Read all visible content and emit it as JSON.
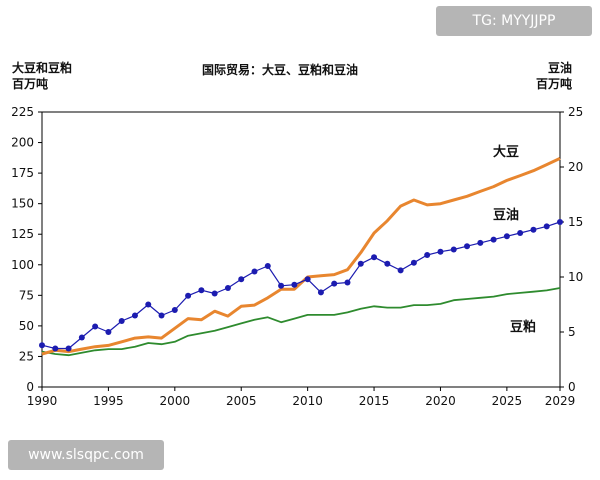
{
  "watermarks": {
    "top": "TG: MYYJJPP",
    "bottom": "www.slsqpc.com"
  },
  "chart_data": {
    "type": "line",
    "title": "国际贸易：大豆、豆粕和豆油",
    "left_axis_label": [
      "大豆和豆粕",
      "百万吨"
    ],
    "right_axis_label": [
      "豆油",
      "百万吨"
    ],
    "x_ticks": [
      1990,
      1995,
      2000,
      2005,
      2010,
      2015,
      2020,
      2025,
      2029
    ],
    "xlim": [
      1990,
      2029
    ],
    "y_left_ticks": [
      0,
      25,
      50,
      75,
      100,
      125,
      150,
      175,
      200,
      225
    ],
    "ylim_left": [
      0,
      225
    ],
    "y_right_ticks": [
      0,
      5,
      10,
      15,
      20,
      25
    ],
    "ylim_right": [
      0,
      25
    ],
    "grid": false,
    "series": [
      {
        "name": "大豆",
        "axis": "left",
        "color": "#e8862f",
        "marker": "none",
        "x": [
          1990,
          1991,
          1992,
          1993,
          1994,
          1995,
          1996,
          1997,
          1998,
          1999,
          2000,
          2001,
          2002,
          2003,
          2004,
          2005,
          2006,
          2007,
          2008,
          2009,
          2010,
          2011,
          2012,
          2013,
          2014,
          2015,
          2016,
          2017,
          2018,
          2019,
          2020,
          2021,
          2022,
          2023,
          2024,
          2025,
          2026,
          2027,
          2028,
          2029
        ],
        "values": [
          27,
          30,
          29,
          31,
          33,
          34,
          37,
          40,
          41,
          40,
          48,
          56,
          55,
          62,
          58,
          66,
          67,
          73,
          80,
          80,
          90,
          91,
          92,
          96,
          110,
          126,
          136,
          148,
          153,
          149,
          150,
          153,
          156,
          160,
          164,
          169,
          173,
          177,
          182,
          187
        ]
      },
      {
        "name": "豆油",
        "axis": "right",
        "color": "#1c1cb0",
        "marker": "circle",
        "x": [
          1990,
          1991,
          1992,
          1993,
          1994,
          1995,
          1996,
          1997,
          1998,
          1999,
          2000,
          2001,
          2002,
          2003,
          2004,
          2005,
          2006,
          2007,
          2008,
          2009,
          2010,
          2011,
          2012,
          2013,
          2014,
          2015,
          2016,
          2017,
          2018,
          2019,
          2020,
          2021,
          2022,
          2023,
          2024,
          2025,
          2026,
          2027,
          2028,
          2029
        ],
        "values": [
          3.8,
          3.5,
          3.5,
          4.5,
          5.5,
          5.0,
          6.0,
          6.5,
          7.5,
          6.5,
          7.0,
          8.3,
          8.8,
          8.5,
          9.0,
          9.8,
          10.5,
          11.0,
          9.2,
          9.3,
          9.8,
          8.6,
          9.4,
          9.5,
          11.2,
          11.8,
          11.2,
          10.6,
          11.3,
          12.0,
          12.3,
          12.5,
          12.8,
          13.1,
          13.4,
          13.7,
          14.0,
          14.3,
          14.6,
          15.0
        ]
      },
      {
        "name": "豆粕",
        "axis": "left",
        "color": "#2e8b2e",
        "marker": "none",
        "x": [
          1990,
          1991,
          1992,
          1993,
          1994,
          1995,
          1996,
          1997,
          1998,
          1999,
          2000,
          2001,
          2002,
          2003,
          2004,
          2005,
          2006,
          2007,
          2008,
          2009,
          2010,
          2011,
          2012,
          2013,
          2014,
          2015,
          2016,
          2017,
          2018,
          2019,
          2020,
          2021,
          2022,
          2023,
          2024,
          2025,
          2026,
          2027,
          2028,
          2029
        ],
        "values": [
          29,
          27,
          26,
          28,
          30,
          31,
          31,
          33,
          36,
          35,
          37,
          42,
          44,
          46,
          49,
          52,
          55,
          57,
          53,
          56,
          59,
          59,
          59,
          61,
          64,
          66,
          65,
          65,
          67,
          67,
          68,
          71,
          72,
          73,
          74,
          76,
          77,
          78,
          79,
          81
        ]
      }
    ]
  }
}
